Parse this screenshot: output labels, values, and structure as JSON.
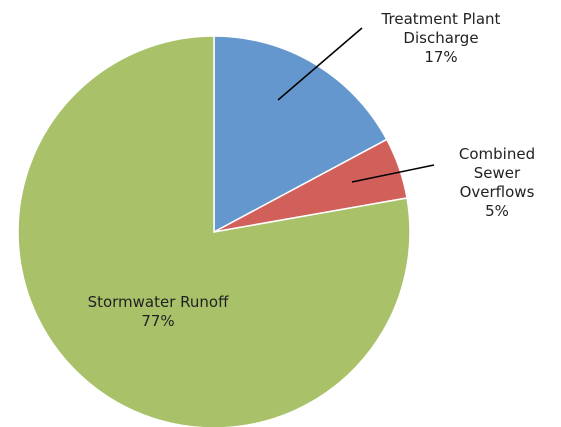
{
  "chart_data": {
    "type": "pie",
    "categories": [
      "Treatment Plant Discharge",
      "Combined Sewer Overflows",
      "Stormwater Runoff"
    ],
    "values": [
      17,
      5,
      77
    ],
    "value_labels": [
      "17%",
      "5%",
      "77%"
    ],
    "colors": [
      "#6497cd",
      "#d2605a",
      "#a9c26a"
    ]
  }
}
